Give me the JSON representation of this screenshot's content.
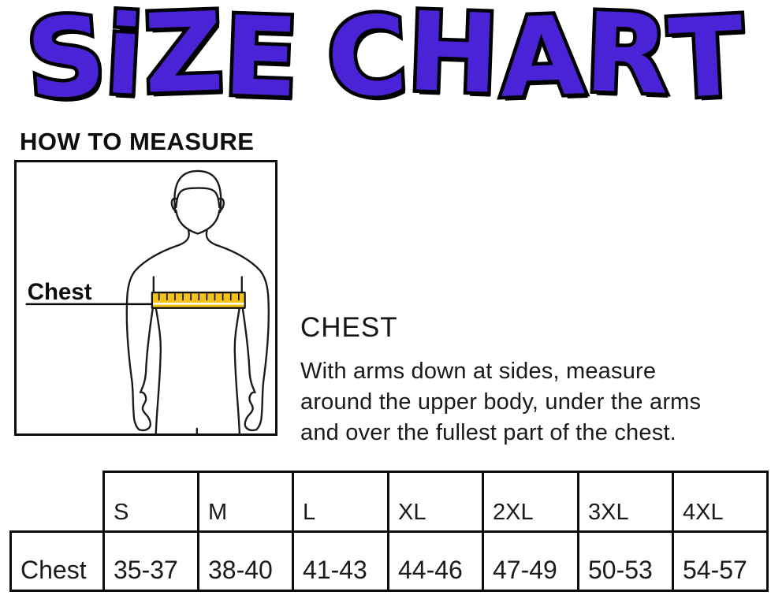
{
  "title": "SiZE CHART",
  "colors": {
    "title_purple": "#4A23D6",
    "outline_black": "#000000",
    "tape_yellow": "#F3C318"
  },
  "how_to_measure": {
    "heading": "HOW TO MEASURE"
  },
  "diagram": {
    "chest_label": "Chest"
  },
  "chest_section": {
    "heading": "CHEST",
    "lines": [
      "With arms down at sides, measure",
      "around the upper body, under the arms",
      "and over the fullest part of the chest."
    ]
  },
  "size_table": {
    "row_label": "Chest",
    "sizes": [
      "S",
      "M",
      "L",
      "XL",
      "2XL",
      "3XL",
      "4XL"
    ],
    "chest_values": [
      "35-37",
      "38-40",
      "41-43",
      "44-46",
      "47-49",
      "50-53",
      "54-57"
    ]
  },
  "chart_data": {
    "type": "table",
    "title": "SiZE CHART",
    "row_label": "Chest",
    "categories": [
      "S",
      "M",
      "L",
      "XL",
      "2XL",
      "3XL",
      "4XL"
    ],
    "values": [
      "35-37",
      "38-40",
      "41-43",
      "44-46",
      "47-49",
      "50-53",
      "54-57"
    ]
  }
}
